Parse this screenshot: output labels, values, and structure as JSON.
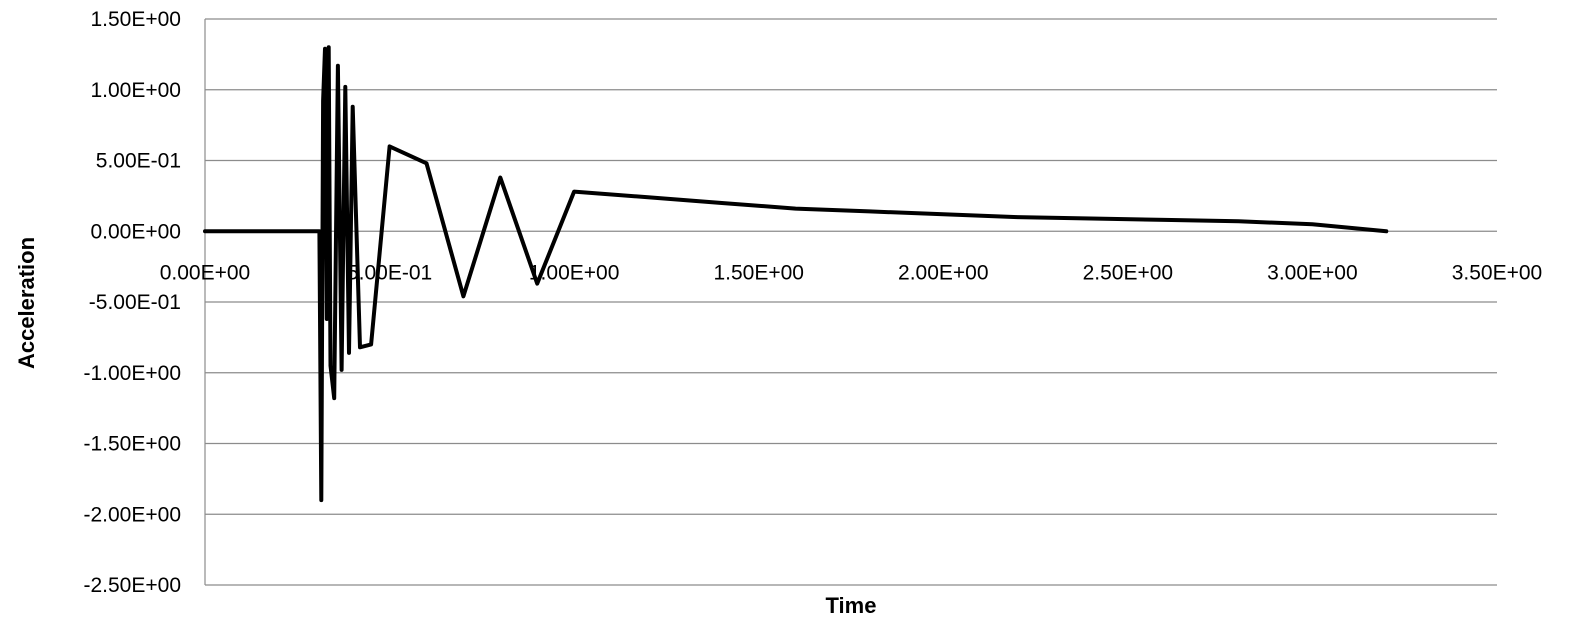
{
  "chart_data": {
    "type": "line",
    "title": "",
    "xlabel": "Time",
    "ylabel": "Acceleration",
    "xlim": [
      0,
      3.5
    ],
    "ylim": [
      -2.5,
      1.5
    ],
    "x_ticks": [
      0,
      0.5,
      1.0,
      1.5,
      2.0,
      2.5,
      3.0,
      3.5
    ],
    "x_tick_labels": [
      "0.00E+00",
      "5.00E-01",
      "1.00E+00",
      "1.50E+00",
      "2.00E+00",
      "2.50E+00",
      "3.00E+00",
      "3.50E+00"
    ],
    "y_ticks": [
      1.5,
      1.0,
      0.5,
      0.0,
      -0.5,
      -1.0,
      -1.5,
      -2.0,
      -2.5
    ],
    "y_tick_labels": [
      "1.50E+00",
      "1.00E+00",
      "5.00E-01",
      "0.00E+00",
      "-5.00E-01",
      "-1.00E+00",
      "-1.50E+00",
      "-2.00E+00",
      "-2.50E+00"
    ],
    "grid": "horizontal",
    "legend": "none",
    "series": [
      {
        "color": "#000000",
        "x": [
          0.0,
          0.1,
          0.2,
          0.3,
          0.31,
          0.315,
          0.32,
          0.325,
          0.33,
          0.335,
          0.34,
          0.35,
          0.36,
          0.37,
          0.38,
          0.39,
          0.4,
          0.42,
          0.45,
          0.5,
          0.6,
          0.7,
          0.8,
          0.9,
          1.0,
          1.2,
          1.4,
          1.6,
          1.8,
          2.0,
          2.2,
          2.4,
          2.6,
          2.8,
          3.0,
          3.2
        ],
        "y": [
          0.0,
          0.0,
          0.0,
          0.0,
          0.0,
          -1.9,
          0.92,
          1.29,
          -0.62,
          1.3,
          -0.95,
          -1.18,
          1.17,
          -0.98,
          1.02,
          -0.86,
          0.88,
          -0.82,
          -0.8,
          0.6,
          0.48,
          -0.46,
          0.38,
          -0.37,
          0.28,
          0.24,
          0.2,
          0.16,
          0.14,
          0.12,
          0.1,
          0.09,
          0.08,
          0.07,
          0.05,
          0.0
        ]
      }
    ]
  }
}
